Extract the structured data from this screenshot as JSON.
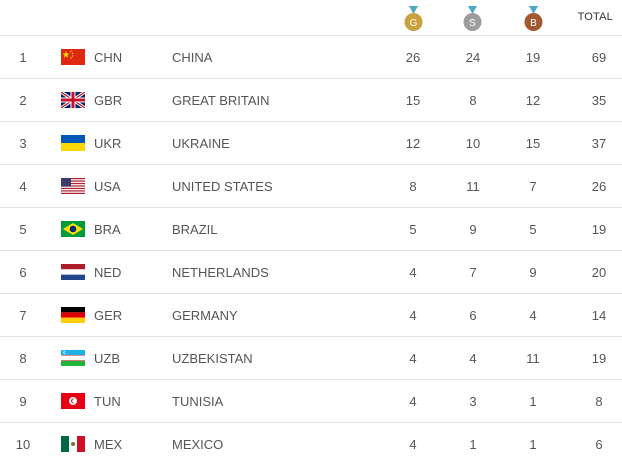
{
  "header": {
    "gold_letter": "G",
    "silver_letter": "S",
    "bronze_letter": "B",
    "total_label": "TOTAL",
    "colors": {
      "gold": "#c9a23f",
      "silver": "#9d9d9d",
      "bronze": "#a3592f",
      "ribbon": "#4ba9c8"
    }
  },
  "rows": [
    {
      "rank": "1",
      "code": "CHN",
      "country": "CHINA",
      "gold": "26",
      "silver": "24",
      "bronze": "19",
      "total": "69",
      "flag_icon": "china-flag-icon"
    },
    {
      "rank": "2",
      "code": "GBR",
      "country": "GREAT BRITAIN",
      "gold": "15",
      "silver": "8",
      "bronze": "12",
      "total": "35",
      "flag_icon": "great-britain-flag-icon"
    },
    {
      "rank": "3",
      "code": "UKR",
      "country": "UKRAINE",
      "gold": "12",
      "silver": "10",
      "bronze": "15",
      "total": "37",
      "flag_icon": "ukraine-flag-icon"
    },
    {
      "rank": "4",
      "code": "USA",
      "country": "UNITED STATES",
      "gold": "8",
      "silver": "11",
      "bronze": "7",
      "total": "26",
      "flag_icon": "usa-flag-icon"
    },
    {
      "rank": "5",
      "code": "BRA",
      "country": "BRAZIL",
      "gold": "5",
      "silver": "9",
      "bronze": "5",
      "total": "19",
      "flag_icon": "brazil-flag-icon"
    },
    {
      "rank": "6",
      "code": "NED",
      "country": "NETHERLANDS",
      "gold": "4",
      "silver": "7",
      "bronze": "9",
      "total": "20",
      "flag_icon": "netherlands-flag-icon"
    },
    {
      "rank": "7",
      "code": "GER",
      "country": "GERMANY",
      "gold": "4",
      "silver": "6",
      "bronze": "4",
      "total": "14",
      "flag_icon": "germany-flag-icon"
    },
    {
      "rank": "8",
      "code": "UZB",
      "country": "UZBEKISTAN",
      "gold": "4",
      "silver": "4",
      "bronze": "11",
      "total": "19",
      "flag_icon": "uzbekistan-flag-icon"
    },
    {
      "rank": "9",
      "code": "TUN",
      "country": "TUNISIA",
      "gold": "4",
      "silver": "3",
      "bronze": "1",
      "total": "8",
      "flag_icon": "tunisia-flag-icon"
    },
    {
      "rank": "10",
      "code": "MEX",
      "country": "MEXICO",
      "gold": "4",
      "silver": "1",
      "bronze": "1",
      "total": "6",
      "flag_icon": "mexico-flag-icon"
    }
  ]
}
